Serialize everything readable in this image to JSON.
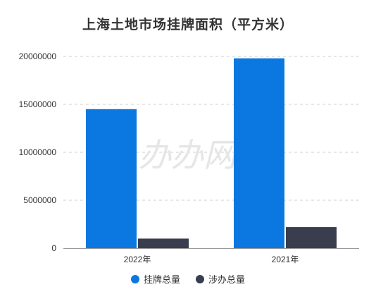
{
  "chart_data": {
    "type": "bar",
    "title": "上海土地市场挂牌面积（平方米）",
    "categories": [
      "2022年",
      "2021年"
    ],
    "series": [
      {
        "name": "挂牌总量",
        "values": [
          14500000,
          19800000
        ],
        "color": "#0a78e0"
      },
      {
        "name": "涉办总量",
        "values": [
          1000000,
          2200000
        ],
        "color": "#3a3d4e"
      }
    ],
    "ylim": [
      0,
      20000000
    ],
    "yticks": [
      "0",
      "5000000",
      "10000000",
      "15000000",
      "20000000"
    ],
    "grid": true,
    "legend_position": "bottom"
  },
  "watermark": "办办网"
}
